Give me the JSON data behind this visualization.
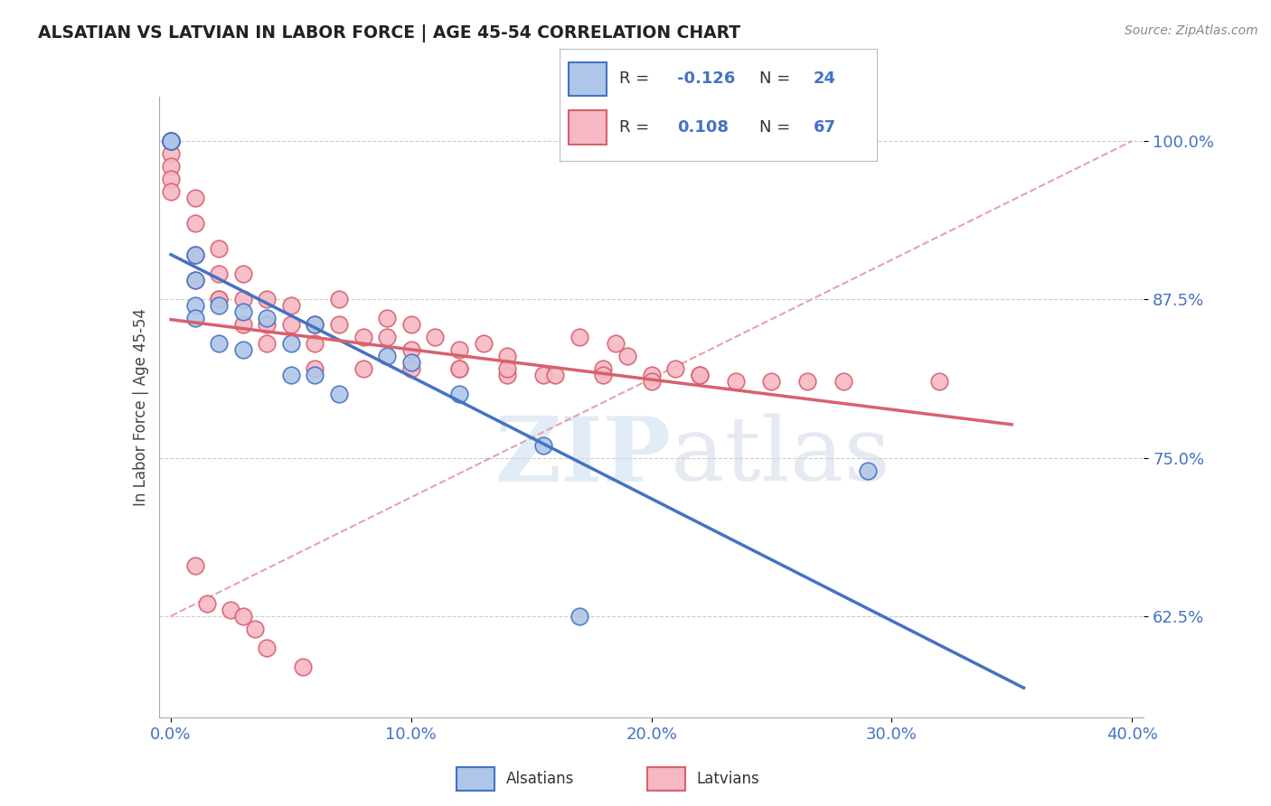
{
  "title": "ALSATIAN VS LATVIAN IN LABOR FORCE | AGE 45-54 CORRELATION CHART",
  "source": "Source: ZipAtlas.com",
  "ylabel": "In Labor Force | Age 45-54",
  "xlim": [
    0.0,
    0.4
  ],
  "ylim": [
    0.545,
    1.035
  ],
  "ytick_labels": [
    "62.5%",
    "75.0%",
    "87.5%",
    "100.0%"
  ],
  "ytick_values": [
    0.625,
    0.75,
    0.875,
    1.0
  ],
  "xtick_labels": [
    "0.0%",
    "10.0%",
    "20.0%",
    "30.0%",
    "40.0%"
  ],
  "xtick_values": [
    0.0,
    0.1,
    0.2,
    0.3,
    0.4
  ],
  "legend_r_alsatian": "-0.126",
  "legend_n_alsatian": "24",
  "legend_r_latvian": "0.108",
  "legend_n_latvian": "67",
  "alsatian_color": "#aec6e8",
  "latvian_color": "#f5b8c4",
  "trend_alsatian_color": "#4472c4",
  "trend_latvian_color": "#d9606e",
  "trend_ref_color": "#e8a0aa",
  "blue_label_color": "#4472c4",
  "alsatian_points_x": [
    0.0,
    0.0,
    0.0,
    0.0,
    0.01,
    0.01,
    0.01,
    0.01,
    0.02,
    0.02,
    0.03,
    0.03,
    0.04,
    0.05,
    0.05,
    0.06,
    0.06,
    0.07,
    0.09,
    0.1,
    0.12,
    0.155,
    0.17,
    0.29
  ],
  "alsatian_points_y": [
    1.0,
    1.0,
    1.0,
    1.0,
    0.91,
    0.89,
    0.87,
    0.86,
    0.87,
    0.84,
    0.865,
    0.835,
    0.86,
    0.84,
    0.815,
    0.855,
    0.815,
    0.8,
    0.83,
    0.825,
    0.8,
    0.76,
    0.625,
    0.74
  ],
  "latvian_points_x": [
    0.0,
    0.0,
    0.0,
    0.0,
    0.0,
    0.0,
    0.0,
    0.01,
    0.01,
    0.01,
    0.01,
    0.02,
    0.02,
    0.02,
    0.03,
    0.03,
    0.03,
    0.04,
    0.04,
    0.05,
    0.05,
    0.06,
    0.06,
    0.07,
    0.07,
    0.08,
    0.09,
    0.09,
    0.1,
    0.1,
    0.11,
    0.12,
    0.12,
    0.13,
    0.14,
    0.14,
    0.155,
    0.17,
    0.18,
    0.185,
    0.19,
    0.2,
    0.21,
    0.22,
    0.235,
    0.265,
    0.02,
    0.04,
    0.06,
    0.08,
    0.1,
    0.12,
    0.14,
    0.16,
    0.18,
    0.2,
    0.22,
    0.25,
    0.28,
    0.32,
    0.01,
    0.015,
    0.025,
    0.03,
    0.035,
    0.04,
    0.055
  ],
  "latvian_points_y": [
    1.0,
    1.0,
    1.0,
    0.99,
    0.98,
    0.97,
    0.96,
    0.955,
    0.935,
    0.91,
    0.89,
    0.915,
    0.895,
    0.875,
    0.895,
    0.875,
    0.855,
    0.875,
    0.855,
    0.87,
    0.855,
    0.855,
    0.84,
    0.875,
    0.855,
    0.845,
    0.86,
    0.845,
    0.855,
    0.835,
    0.845,
    0.835,
    0.82,
    0.84,
    0.83,
    0.815,
    0.815,
    0.845,
    0.82,
    0.84,
    0.83,
    0.815,
    0.82,
    0.815,
    0.81,
    0.81,
    0.875,
    0.84,
    0.82,
    0.82,
    0.82,
    0.82,
    0.82,
    0.815,
    0.815,
    0.81,
    0.815,
    0.81,
    0.81,
    0.81,
    0.665,
    0.635,
    0.63,
    0.625,
    0.615,
    0.6,
    0.585
  ]
}
